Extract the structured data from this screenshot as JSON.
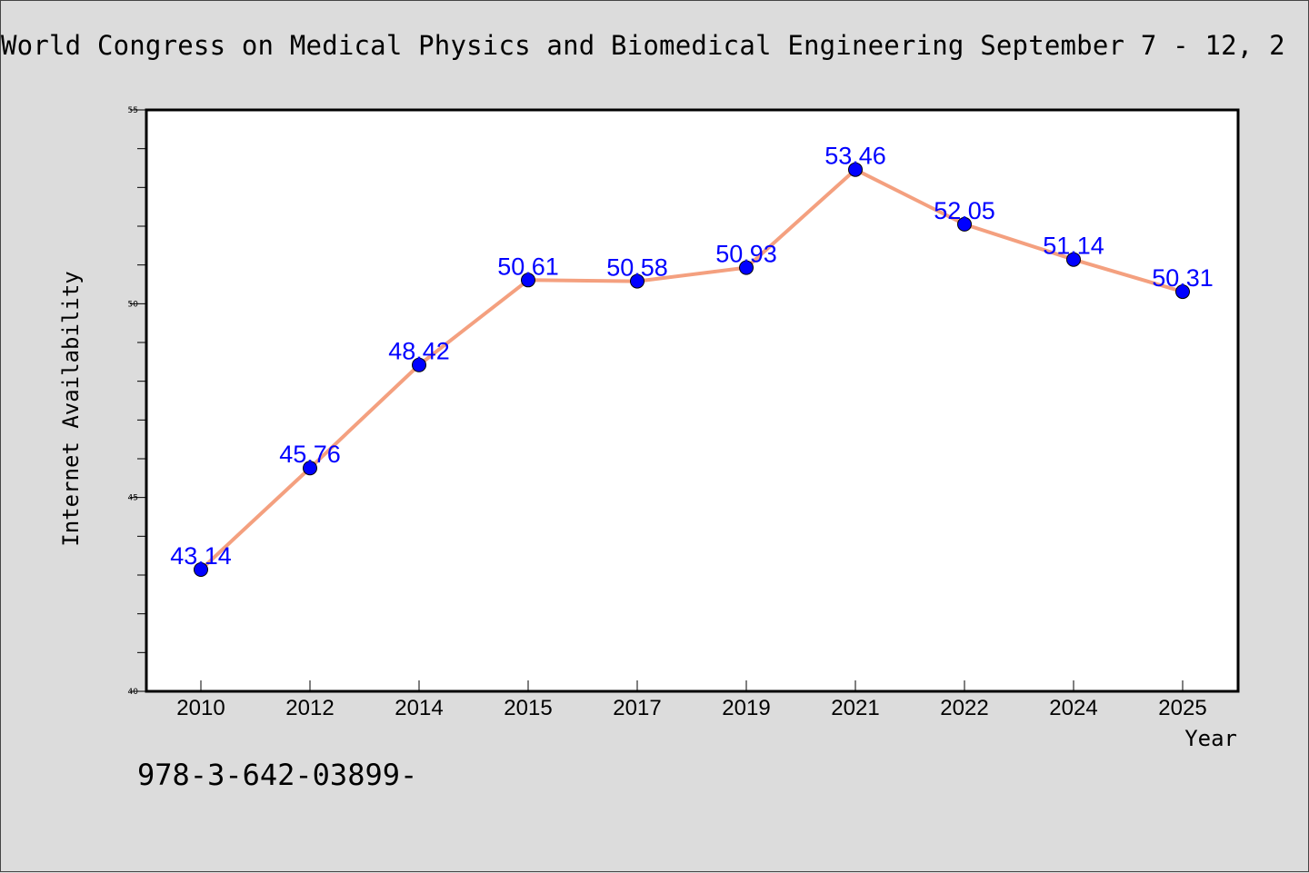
{
  "chart_data": {
    "type": "line",
    "title": "World Congress on Medical Physics and Biomedical Engineering September 7 - 12, 2",
    "xlabel": "Year",
    "ylabel": "Internet Availability",
    "categories": [
      "2010",
      "2012",
      "2014",
      "2015",
      "2017",
      "2019",
      "2021",
      "2022",
      "2024",
      "2025"
    ],
    "series": [
      {
        "values": [
          43.14,
          45.76,
          48.42,
          50.61,
          50.58,
          50.93,
          53.46,
          52.05,
          51.14,
          50.31
        ],
        "labels": [
          "43.14",
          "45.76",
          "48.42",
          "50.61",
          "50.58",
          "50.93",
          "53.46",
          "52.05",
          "51.14",
          "50.31"
        ],
        "line_color": "#f4a07f",
        "marker_color": "#0000ff"
      }
    ],
    "ylim": [
      40,
      55
    ],
    "yticks": [
      "40",
      "45",
      "50",
      "55"
    ],
    "grid": false,
    "legend": "none",
    "data_label_color": "#0000ff"
  },
  "footnote": "978-3-642-03899-"
}
